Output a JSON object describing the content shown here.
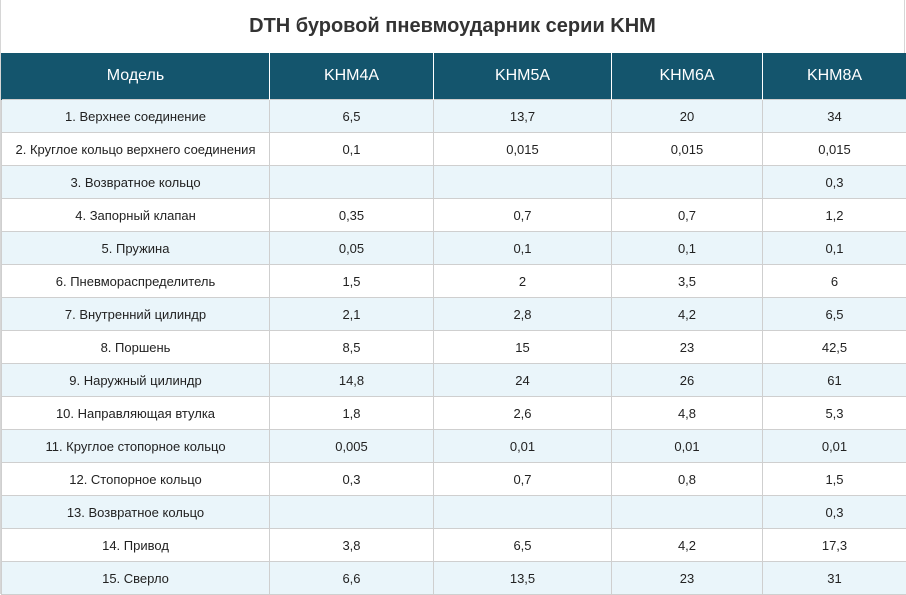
{
  "title": "DTH буровой пневмоударник серии KHM",
  "table": {
    "headers": [
      "Модель",
      "KHM4A",
      "KHM5A",
      "KHM6A",
      "KHM8A"
    ],
    "rows": [
      [
        "1. Верхнее соединение",
        "6,5",
        "13,7",
        "20",
        "34"
      ],
      [
        "2. Круглое кольцо верхнего соединения",
        "0,1",
        "0,015",
        "0,015",
        "0,015"
      ],
      [
        "3. Возвратное кольцо",
        "",
        "",
        "",
        "0,3"
      ],
      [
        "4. Запорный клапан",
        "0,35",
        "0,7",
        "0,7",
        "1,2"
      ],
      [
        "5. Пружина",
        "0,05",
        "0,1",
        "0,1",
        "0,1"
      ],
      [
        "6. Пневмораспределитель",
        "1,5",
        "2",
        "3,5",
        "6"
      ],
      [
        "7. Внутренний цилиндр",
        "2,1",
        "2,8",
        "4,2",
        "6,5"
      ],
      [
        "8. Поршень",
        "8,5",
        "15",
        "23",
        "42,5"
      ],
      [
        "9. Наружный цилиндр",
        "14,8",
        "24",
        "26",
        "61"
      ],
      [
        "10. Направляющая втулка",
        "1,8",
        "2,6",
        "4,8",
        "5,3"
      ],
      [
        "11. Круглое стопорное кольцо",
        "0,005",
        "0,01",
        "0,01",
        "0,01"
      ],
      [
        "12. Стопорное кольцо",
        "0,3",
        "0,7",
        "0,8",
        "1,5"
      ],
      [
        "13. Возвратное кольцо",
        "",
        "",
        "",
        "0,3"
      ],
      [
        "14. Привод",
        "3,8",
        "6,5",
        "4,2",
        "17,3"
      ],
      [
        "15. Сверло",
        "6,6",
        "13,5",
        "23",
        "31"
      ]
    ]
  }
}
